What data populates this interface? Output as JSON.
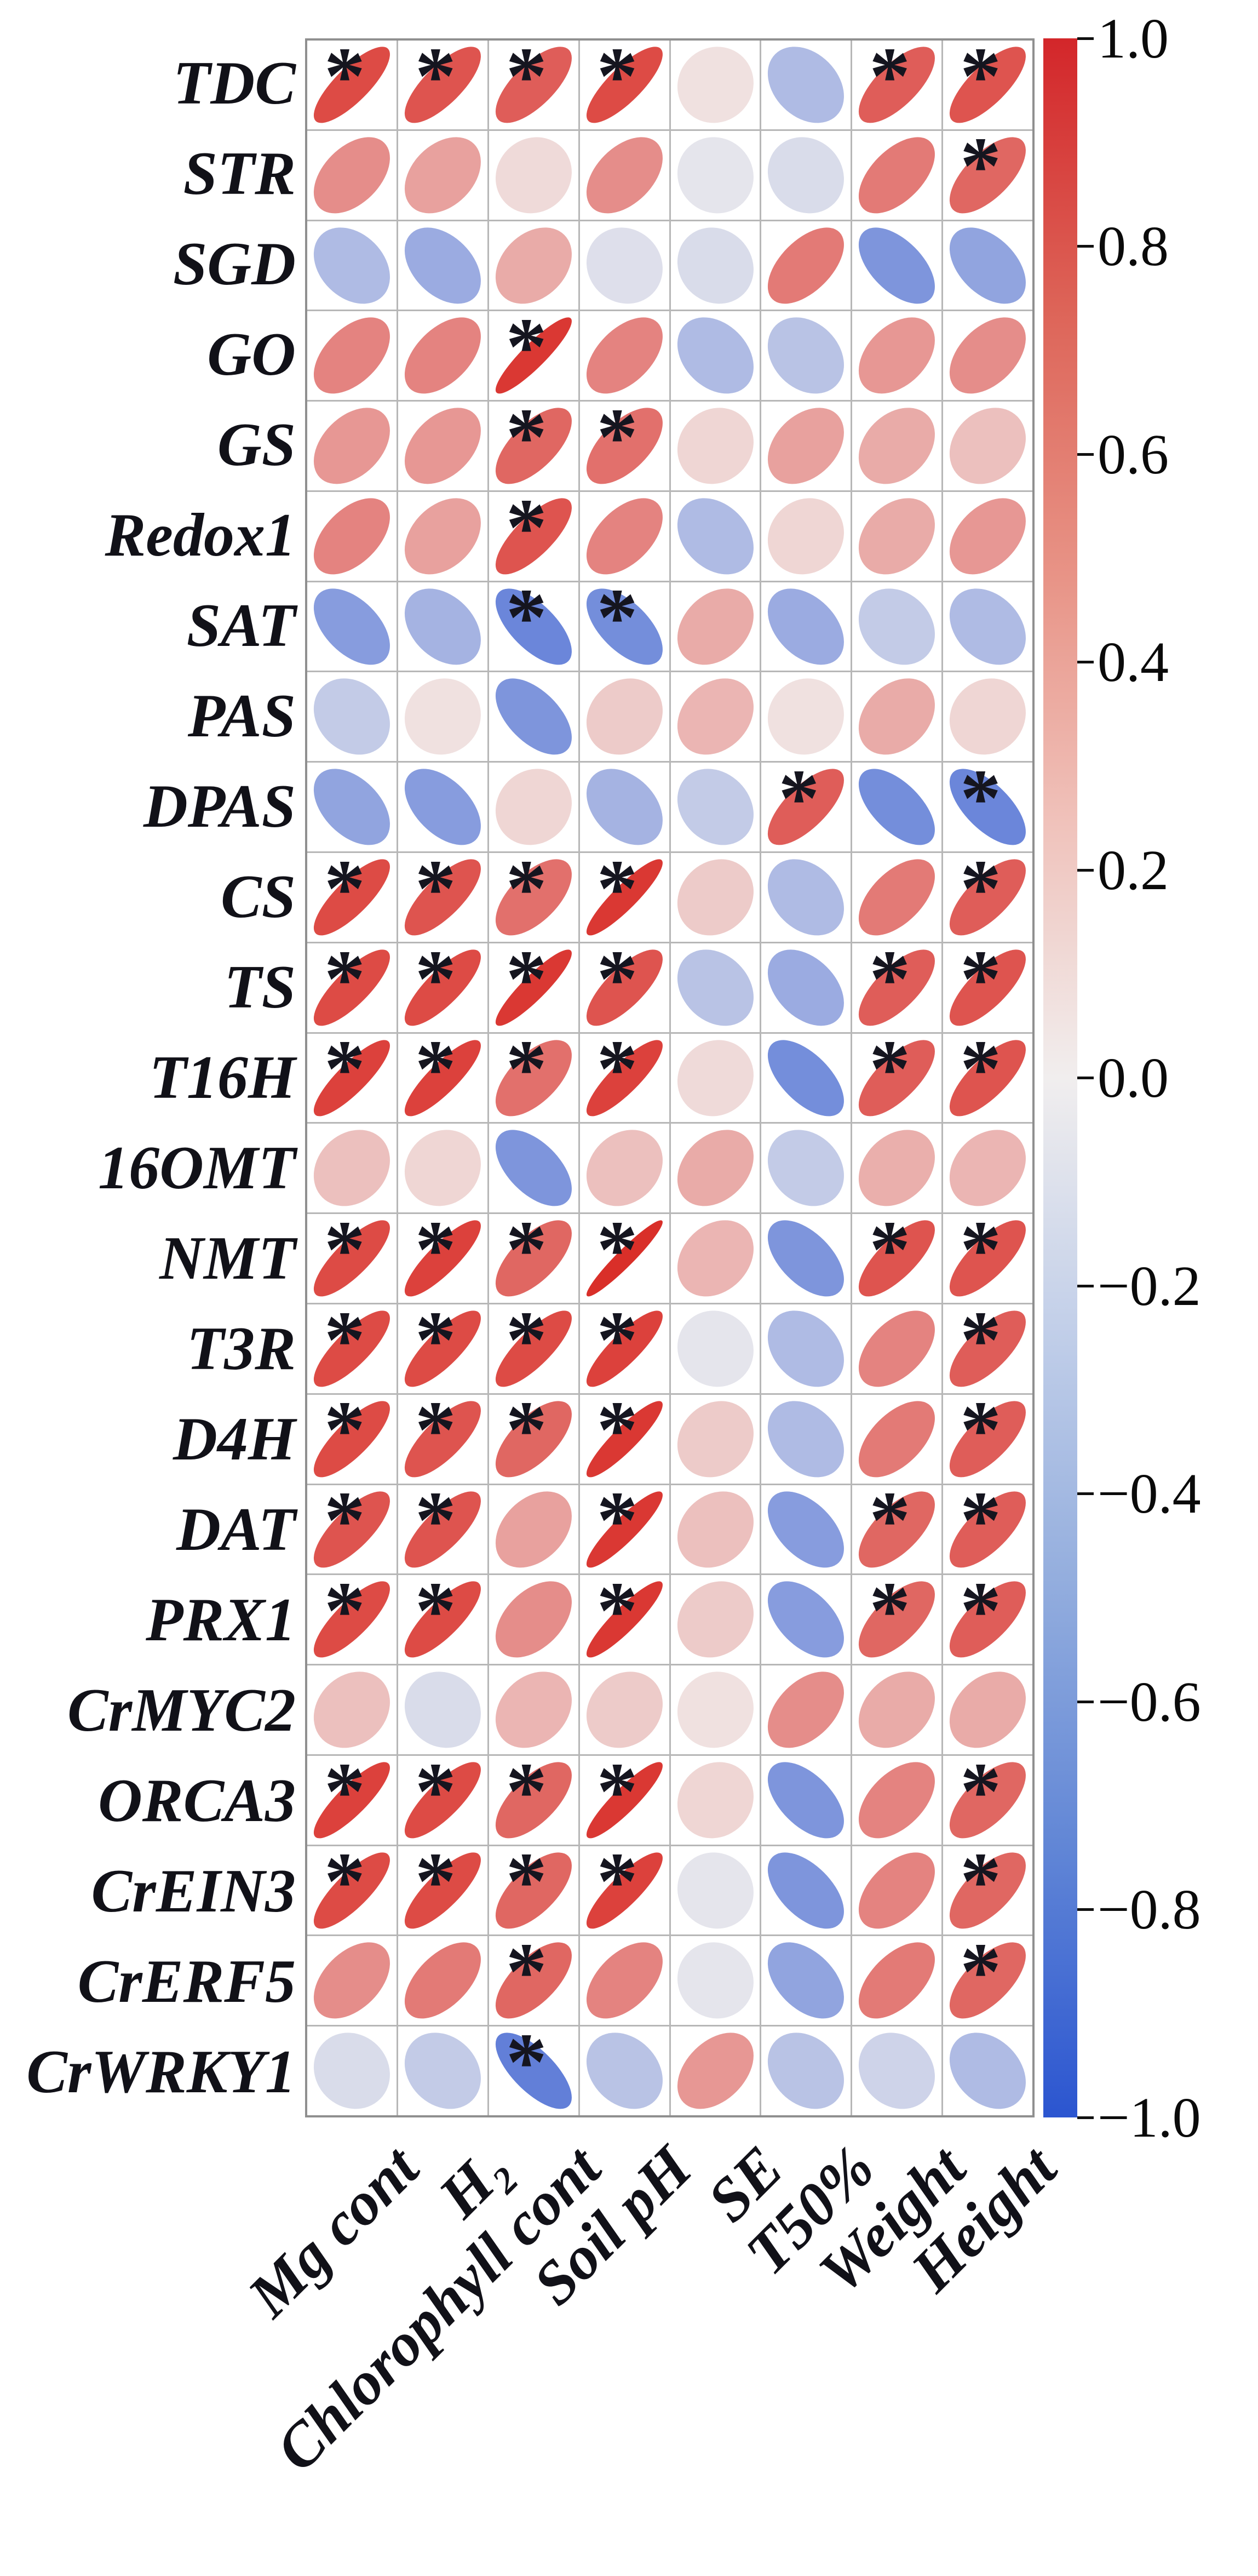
{
  "chart_data": {
    "type": "heatmap",
    "style": "correlation-ellipse-matrix",
    "title": "",
    "xlabel": "",
    "ylabel": "",
    "legend_position": "right-colorbar",
    "grid": "on",
    "rows": [
      "TDC",
      "STR",
      "SGD",
      "GO",
      "GS",
      "Redox1",
      "SAT",
      "PAS",
      "DPAS",
      "CS",
      "TS",
      "T16H",
      "16OMT",
      "NMT",
      "T3R",
      "D4H",
      "DAT",
      "PRX1",
      "CrMYC2",
      "ORCA3",
      "CrEIN3",
      "CrERF5",
      "CrWRKY1"
    ],
    "categories": [
      "Mg cont",
      "H₂",
      "Chlorophyll cont",
      "Soil pH",
      "SE",
      "T50%",
      "Weight",
      "Height"
    ],
    "values": [
      [
        0.8,
        0.75,
        0.7,
        0.8,
        0.05,
        -0.3,
        0.7,
        0.75
      ],
      [
        0.45,
        0.35,
        0.08,
        0.45,
        -0.05,
        -0.1,
        0.55,
        0.65
      ],
      [
        -0.3,
        -0.4,
        0.3,
        -0.08,
        -0.1,
        0.55,
        -0.55,
        -0.45
      ],
      [
        0.5,
        0.5,
        0.9,
        0.5,
        -0.3,
        -0.25,
        0.4,
        0.45
      ],
      [
        0.4,
        0.4,
        0.65,
        0.6,
        0.1,
        0.35,
        0.3,
        0.2
      ],
      [
        0.5,
        0.35,
        0.75,
        0.5,
        -0.3,
        0.1,
        0.3,
        0.4
      ],
      [
        -0.5,
        -0.35,
        -0.65,
        -0.6,
        0.3,
        -0.4,
        -0.2,
        -0.3
      ],
      [
        -0.2,
        0.05,
        -0.55,
        0.15,
        0.25,
        0.05,
        0.3,
        0.1
      ],
      [
        -0.45,
        -0.5,
        0.1,
        -0.35,
        -0.2,
        0.7,
        -0.6,
        -0.65
      ],
      [
        0.8,
        0.75,
        0.6,
        0.9,
        0.15,
        -0.3,
        0.55,
        0.7
      ],
      [
        0.8,
        0.8,
        0.9,
        0.75,
        -0.25,
        -0.4,
        0.7,
        0.75
      ],
      [
        0.85,
        0.85,
        0.6,
        0.85,
        0.08,
        -0.6,
        0.7,
        0.75
      ],
      [
        0.2,
        0.1,
        -0.55,
        0.2,
        0.3,
        -0.2,
        0.28,
        0.25
      ],
      [
        0.8,
        0.85,
        0.65,
        0.95,
        0.25,
        -0.55,
        0.75,
        0.75
      ],
      [
        0.8,
        0.8,
        0.8,
        0.85,
        -0.05,
        -0.3,
        0.5,
        0.7
      ],
      [
        0.8,
        0.75,
        0.65,
        0.9,
        0.15,
        -0.3,
        0.55,
        0.7
      ],
      [
        0.75,
        0.75,
        0.35,
        0.9,
        0.2,
        -0.5,
        0.65,
        0.7
      ],
      [
        0.8,
        0.8,
        0.45,
        0.9,
        0.15,
        -0.5,
        0.65,
        0.7
      ],
      [
        0.2,
        -0.1,
        0.25,
        0.15,
        0.05,
        0.45,
        0.3,
        0.3
      ],
      [
        0.85,
        0.8,
        0.65,
        0.9,
        0.1,
        -0.55,
        0.5,
        0.65
      ],
      [
        0.8,
        0.8,
        0.65,
        0.85,
        -0.05,
        -0.55,
        0.5,
        0.65
      ],
      [
        0.45,
        0.55,
        0.65,
        0.5,
        -0.05,
        -0.45,
        0.55,
        0.65
      ],
      [
        -0.1,
        -0.2,
        -0.7,
        -0.25,
        0.4,
        -0.25,
        -0.15,
        -0.3
      ]
    ],
    "significance": [
      [
        1,
        1,
        1,
        1,
        0,
        0,
        1,
        1
      ],
      [
        0,
        0,
        0,
        0,
        0,
        0,
        0,
        1
      ],
      [
        0,
        0,
        0,
        0,
        0,
        0,
        0,
        0
      ],
      [
        0,
        0,
        1,
        0,
        0,
        0,
        0,
        0
      ],
      [
        0,
        0,
        1,
        1,
        0,
        0,
        0,
        0
      ],
      [
        0,
        0,
        1,
        0,
        0,
        0,
        0,
        0
      ],
      [
        0,
        0,
        1,
        1,
        0,
        0,
        0,
        0
      ],
      [
        0,
        0,
        0,
        0,
        0,
        0,
        0,
        0
      ],
      [
        0,
        0,
        0,
        0,
        0,
        1,
        0,
        1
      ],
      [
        1,
        1,
        1,
        1,
        0,
        0,
        0,
        1
      ],
      [
        1,
        1,
        1,
        1,
        0,
        0,
        1,
        1
      ],
      [
        1,
        1,
        1,
        1,
        0,
        0,
        1,
        1
      ],
      [
        0,
        0,
        0,
        0,
        0,
        0,
        0,
        0
      ],
      [
        1,
        1,
        1,
        1,
        0,
        0,
        1,
        1
      ],
      [
        1,
        1,
        1,
        1,
        0,
        0,
        0,
        1
      ],
      [
        1,
        1,
        1,
        1,
        0,
        0,
        0,
        1
      ],
      [
        1,
        1,
        0,
        1,
        0,
        0,
        1,
        1
      ],
      [
        1,
        1,
        0,
        1,
        0,
        0,
        1,
        1
      ],
      [
        0,
        0,
        0,
        0,
        0,
        0,
        0,
        0
      ],
      [
        1,
        1,
        1,
        1,
        0,
        0,
        0,
        1
      ],
      [
        1,
        1,
        1,
        1,
        0,
        0,
        0,
        1
      ],
      [
        0,
        0,
        1,
        0,
        0,
        0,
        0,
        1
      ],
      [
        0,
        0,
        1,
        0,
        0,
        0,
        0,
        0
      ]
    ],
    "significance_marker": "*",
    "colorbar": {
      "min": -1.0,
      "max": 1.0,
      "tick_labels": [
        "1.0",
        "0.8",
        "0.6",
        "0.4",
        "0.2",
        "0.0",
        "−0.2",
        "−0.4",
        "−0.6",
        "−0.8",
        "−1.0"
      ],
      "color_positive": "#d3262a",
      "color_zero": "#f1eeee",
      "color_negative": "#2b55d0"
    }
  }
}
